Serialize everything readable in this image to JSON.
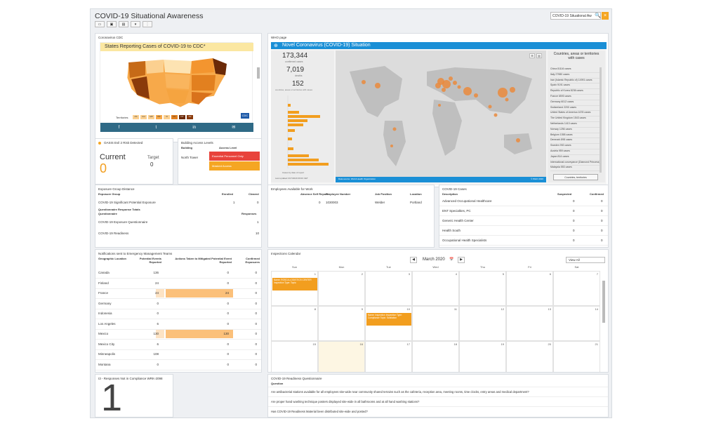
{
  "header": {
    "title": "COVID-19 Situational Awareness",
    "search_value": "COVID-19 Situational Aw",
    "close": "×",
    "toolbar": [
      "▭",
      "▣",
      "▤",
      "▾",
      "⋮"
    ]
  },
  "cdc": {
    "panel_title": "Coronavirus CDC",
    "banner": "States Reporting Cases of COVID-19 to CDC*",
    "territories_label": "Territories",
    "territories": [
      "AS",
      "GU",
      "MP",
      "PR",
      "VI",
      "DC",
      "NY",
      "NJ"
    ],
    "badge": "CDC",
    "social": [
      "f",
      "t",
      "in",
      "✉"
    ]
  },
  "who": {
    "panel_title": "WHO page",
    "banner": "Novel Coronavirus (COVID-19) Situation",
    "confirmed_value": "173,344",
    "confirmed_label": "confirmed cases",
    "deaths_value": "7,019",
    "deaths_label": "deaths",
    "countries_value": "152",
    "countries_label": "countries, areas or territories with cases",
    "list_title": "Countries, areas or territories with cases",
    "countries": [
      "China 81116 cases",
      "Italy 27980 cases",
      "Iran (Islamic Republic of) 14991 cases",
      "Spain 9191 cases",
      "Republic of Korea 8236 cases",
      "France 6590 cases",
      "Germany 6012 cases",
      "Switzerland 2200 cases",
      "United States of America 1678 cases",
      "The United Kingdom 1543 cases",
      "Netherlands 1413 cases",
      "Norway 1256 cases",
      "Belgium 1058 cases",
      "Denmark 898 cases",
      "Sweden 992 cases",
      "Austria 959 cases",
      "Japan 814 cases",
      "International conveyance (Diamond Princess) 712 cases",
      "Malaysia 553 cases"
    ],
    "last_updated": "Last updated 3/17/2020 09:00 CET",
    "map_footer_left": "Data source: World Health Organization",
    "map_footer_right": "© WHO 2020",
    "btn_countries": "Countries, territories",
    "chart_footer": "Cases by date of report"
  },
  "rss": {
    "panel_title": "OASIS Evil 2 Risk Detected",
    "current_label": "Current",
    "current_value": "0",
    "target_label": "Target",
    "target_value": "0"
  },
  "access": {
    "panel_title": "Building Access Levels",
    "col_building": "Building",
    "col_access": "Access Level",
    "building": "North Tower",
    "level1": "Essential Personnel Only",
    "level2": "Masked Access"
  },
  "exposure": {
    "panel_title": "Exposure Group Distance",
    "cols": [
      "Exposure Group",
      "Enrolled",
      "Cleared"
    ],
    "rows": [
      {
        "name": "COVID-19 Significant Potential Exposure",
        "enrolled": "1",
        "cleared": "0"
      }
    ],
    "sub_title": "Questionnaire Response Totals",
    "sub_cols": [
      "Questionnaire",
      "Responses"
    ],
    "sub_rows": [
      {
        "name": "COVID-19 Exposure Questionnaire",
        "val": "1"
      },
      {
        "name": "COVID-19 Readiness",
        "val": "10"
      }
    ]
  },
  "employees": {
    "panel_title": "Employees Available for Work",
    "cols": [
      "Absence Self Report",
      "Employee Number",
      "Job Position",
      "Location"
    ],
    "rows": [
      {
        "a": "0",
        "b": "1030003",
        "c": "Welder",
        "d": "Portland"
      }
    ]
  },
  "cases": {
    "panel_title": "COVID-19 Cases",
    "cols": [
      "Description",
      "Suspected",
      "Confirmed"
    ],
    "rows": [
      {
        "d": "Advanced Occupational Healthcare",
        "s": "0",
        "c": "0"
      },
      {
        "d": "ENT Specialties, PC",
        "s": "0",
        "c": "0"
      },
      {
        "d": "Generic Health Center",
        "s": "0",
        "c": "0"
      },
      {
        "d": "Health South",
        "s": "0",
        "c": "0"
      },
      {
        "d": "Occupational Health Specialists",
        "s": "0",
        "c": "0"
      }
    ]
  },
  "notifications": {
    "panel_title": "Notifications sent to Emergency Management Teams",
    "cols": [
      "Geographic Location",
      "Potential Events Reported",
      "Actions Taken to Mitigated Potential Event Reported",
      "Confirmed Exposures"
    ],
    "rows": [
      {
        "g": "Canada",
        "p": "136",
        "a": "0",
        "c": "0",
        "hl": false
      },
      {
        "g": "Finland",
        "p": "24",
        "a": "0",
        "c": "0",
        "hl": false
      },
      {
        "g": "France",
        "p": "24",
        "a": "24",
        "c": "0",
        "hl": true
      },
      {
        "g": "Germany",
        "p": "0",
        "a": "0",
        "c": "0",
        "hl": false
      },
      {
        "g": "Indonesia",
        "p": "0",
        "a": "0",
        "c": "0",
        "hl": false
      },
      {
        "g": "Los Angeles",
        "p": "6",
        "a": "0",
        "c": "0",
        "hl": false
      },
      {
        "g": "Mexico",
        "p": "130",
        "a": "130",
        "c": "0",
        "hl": true
      },
      {
        "g": "Mexico City",
        "p": "6",
        "a": "0",
        "c": "0",
        "hl": false
      },
      {
        "g": "Minneapolis",
        "p": "108",
        "a": "0",
        "c": "0",
        "hl": false
      },
      {
        "g": "Montana",
        "p": "0",
        "a": "0",
        "c": "0",
        "hl": false
      }
    ]
  },
  "calendar": {
    "panel_title": "Inspections Calendar",
    "month": "March 2020",
    "prev": "◀",
    "next": "▶",
    "view": "View All",
    "days": [
      "Sun",
      "Mon",
      "Tue",
      "Wed",
      "Thu",
      "Fri",
      "Sat"
    ],
    "week1": [
      "1",
      "2",
      "3",
      "4",
      "5",
      "6",
      "7"
    ],
    "week2": [
      "8",
      "9",
      "10",
      "11",
      "12",
      "13",
      "14"
    ],
    "week3": [
      "15",
      "16",
      "17",
      "18",
      "19",
      "20",
      "21"
    ],
    "event1": "Name: ROSCA-LOGISTICS CENTER Inspection Type: Topic:",
    "event2": "Name: Inspection Inspection Type: Compliance Topic: Sanitation"
  },
  "noncompliance": {
    "panel_title": "I3 - Responses Not in Compliance WRK-2098",
    "value": "1"
  },
  "readiness": {
    "panel_title": "COVID-19 Readiness Questionnaire",
    "col": "Question",
    "rows": [
      "Are antibacterial stations available for all employees site-wide near community shared terrains such as the cafeteria, reception area, meeting rooms, time clocks, entry areas and medical department?",
      "Are proper hand washing technique posters displayed site-wide in all bathrooms and at all hand washing stations?",
      "Has COVID-19 Readiness Material been distributed site-wide and posted?"
    ]
  }
}
